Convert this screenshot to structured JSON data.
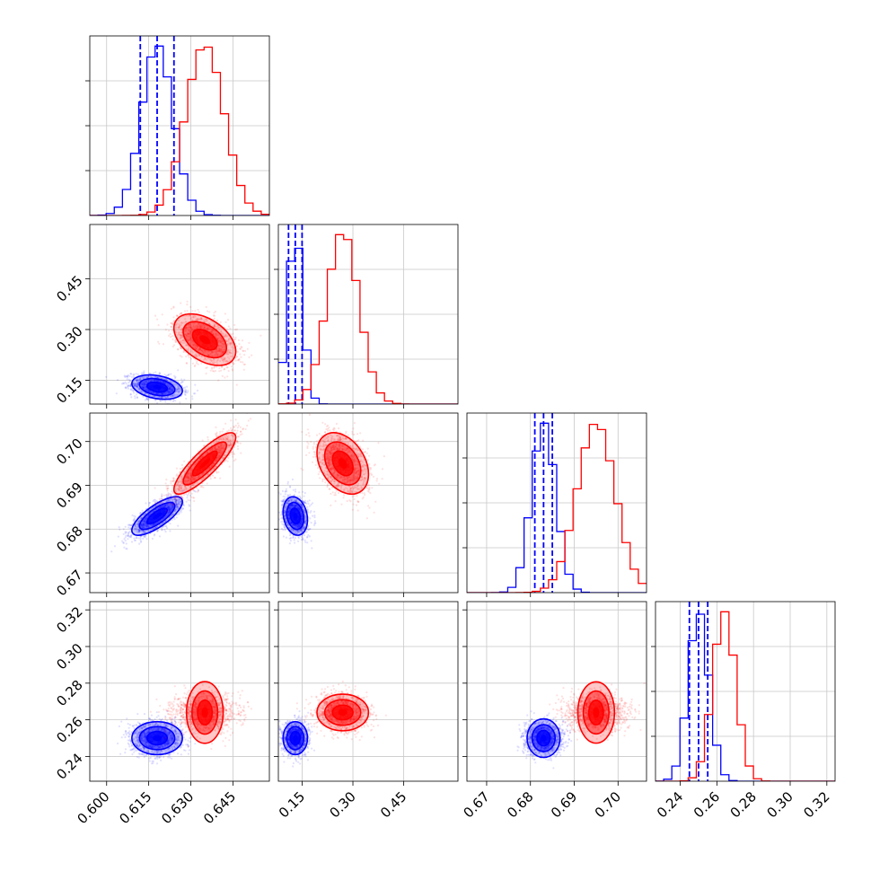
{
  "chart_data": {
    "type": "corner",
    "variables": [
      {
        "ticks": [
          0.6,
          0.615,
          0.63,
          0.645
        ],
        "tick_labels": [
          "0.600",
          "0.615",
          "0.630",
          "0.645"
        ],
        "range": [
          0.594,
          0.658
        ]
      },
      {
        "ticks": [
          0.15,
          0.3,
          0.45
        ],
        "tick_labels": [
          "0.15",
          "0.30",
          "0.45"
        ],
        "range": [
          0.08,
          0.61
        ]
      },
      {
        "ticks": [
          0.67,
          0.68,
          0.69,
          0.7
        ],
        "tick_labels": [
          "0.67",
          "0.68",
          "0.69",
          "0.70"
        ],
        "range": [
          0.6655,
          0.7065
        ]
      },
      {
        "ticks": [
          0.24,
          0.26,
          0.28,
          0.3,
          0.32
        ],
        "tick_labels": [
          "0.24",
          "0.26",
          "0.28",
          "0.30",
          "0.32"
        ],
        "range": [
          0.2265,
          0.3245
        ]
      }
    ],
    "grid": true,
    "series": [
      {
        "color": "#0000ff",
        "means": [
          0.618,
          0.13,
          0.683,
          0.25
        ],
        "stds": [
          0.0045,
          0.018,
          0.0022,
          0.0045
        ],
        "corr": [
          [
            1,
            -0.3,
            0.75,
            0
          ],
          [
            -0.3,
            1,
            -0.2,
            0
          ],
          [
            0.75,
            -0.2,
            1,
            0
          ],
          [
            0,
            0,
            0,
            1
          ]
        ],
        "quantile_lines": [
          [
            0.612,
            0.618,
            0.624
          ],
          [
            0.11,
            0.13,
            0.15
          ],
          [
            0.681,
            0.683,
            0.685
          ],
          [
            0.245,
            0.25,
            0.255
          ]
        ]
      },
      {
        "color": "#ff0000",
        "means": [
          0.635,
          0.27,
          0.695,
          0.264
        ],
        "stds": [
          0.0055,
          0.038,
          0.0035,
          0.005
        ],
        "corr": [
          [
            1,
            -0.45,
            0.85,
            0
          ],
          [
            -0.45,
            1,
            -0.35,
            0
          ],
          [
            0.85,
            -0.35,
            1,
            0
          ],
          [
            0,
            0,
            0,
            1
          ]
        ],
        "quantile_lines": []
      }
    ]
  }
}
